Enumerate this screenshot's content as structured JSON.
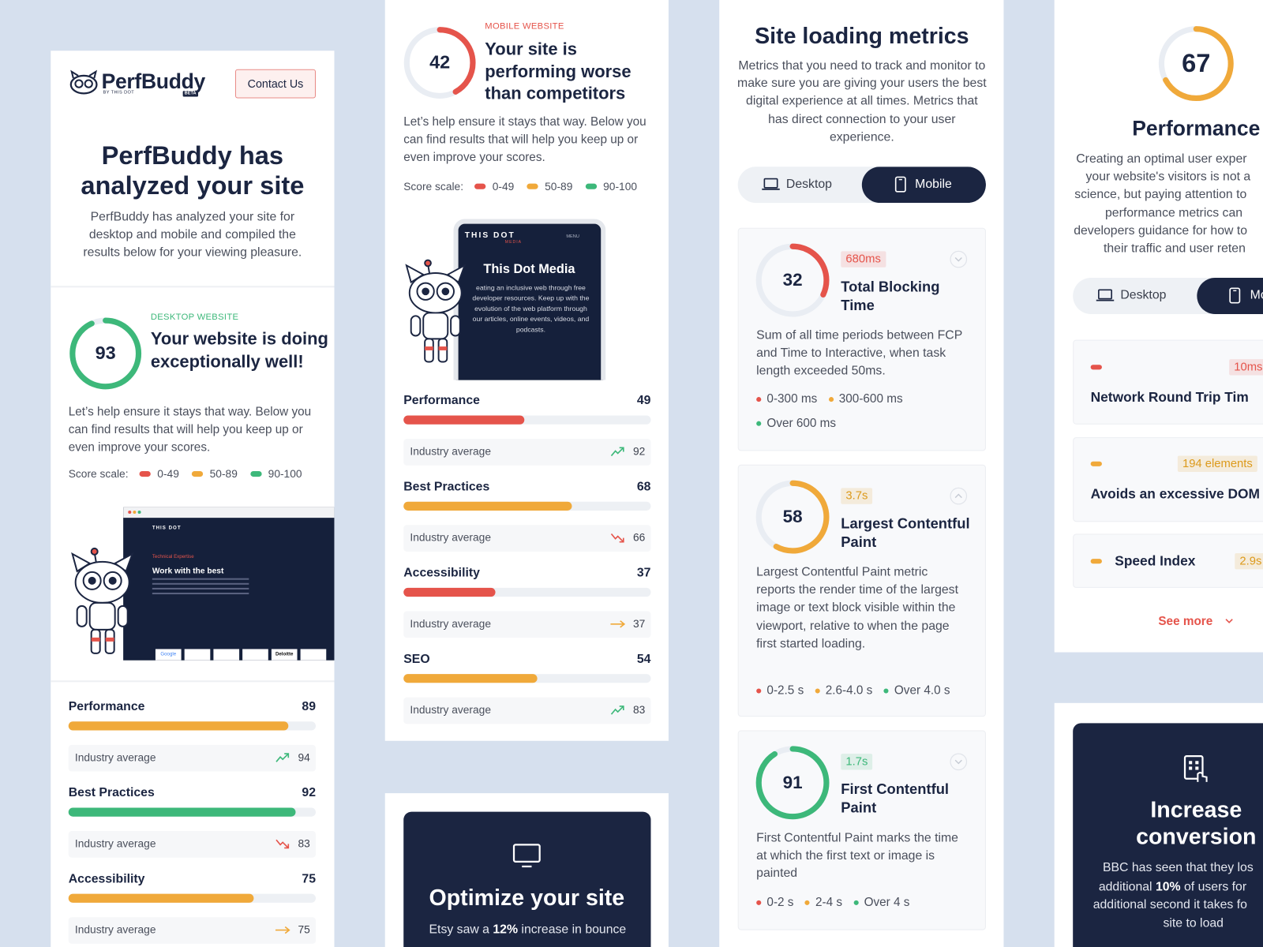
{
  "overview": {
    "logo": "PerfBuddy",
    "logo_by": "BY THIS DOT",
    "logo_badge": "BETA",
    "contact_button": "Contact Us",
    "title": "PerfBuddy has analyzed your site",
    "description": "PerfBuddy has analyzed your site for desktop and mobile and compiled the results below for your viewing pleasure."
  },
  "score_scale": {
    "label": "Score scale:",
    "ranges": [
      {
        "label": "0-49",
        "color": "#e5544b"
      },
      {
        "label": "50-89",
        "color": "#f0a93a"
      },
      {
        "label": "90-100",
        "color": "#3db87a"
      }
    ]
  },
  "industry_label": "Industry average",
  "desktop": {
    "score": 93,
    "color": "#3db87a",
    "label": "DESKTOP WEBSITE",
    "heading": "Your website is doing exceptionally well!",
    "text": "Let’s help ensure it stays that way. Below you can find results that will help you keep up or even improve your scores.",
    "illustration": {
      "brand": "THIS DOT",
      "kicker": "Technical Expertise",
      "headline": "Work with the best",
      "logos": [
        "Google",
        "Deloitte"
      ]
    },
    "metrics": [
      {
        "name": "Performance",
        "score": 89,
        "color": "#f0a93a",
        "industry": 94,
        "trend": "up"
      },
      {
        "name": "Best Practices",
        "score": 92,
        "color": "#3db87a",
        "industry": 83,
        "trend": "down"
      },
      {
        "name": "Accessibility",
        "score": 75,
        "color": "#f0a93a",
        "industry": 75,
        "trend": "flat"
      }
    ]
  },
  "mobile": {
    "score": 42,
    "color": "#e5544b",
    "label": "MOBILE WEBSITE",
    "heading": "Your site is performing worse than competitors",
    "text": "Let’s help ensure it stays that way. Below you can find results that will help you keep up or even improve your scores.",
    "illustration": {
      "brand": "THIS DOT",
      "sub": "MEDIA",
      "menu": "MENU",
      "headline": "This Dot Media",
      "text": "eating an inclusive web through free developer resources. Keep up with the evolution of the web platform through our articles, online events, videos, and podcasts."
    },
    "metrics": [
      {
        "name": "Performance",
        "score": 49,
        "color": "#e5544b",
        "industry": 92,
        "trend": "up"
      },
      {
        "name": "Best Practices",
        "score": 68,
        "color": "#f0a93a",
        "industry": 66,
        "trend": "down"
      },
      {
        "name": "Accessibility",
        "score": 37,
        "color": "#e5544b",
        "industry": 37,
        "trend": "flat"
      },
      {
        "name": "SEO",
        "score": 54,
        "color": "#f0a93a",
        "industry": 83,
        "trend": "up"
      }
    ]
  },
  "optimize": {
    "title": "Optimize your site",
    "text_before": "Etsy saw a ",
    "text_bold": "12%",
    "text_after": " increase in bounce"
  },
  "loading": {
    "title": "Site loading metrics",
    "description": "Metrics that you need to track and monitor to make sure you are giving your users the best digital experience at all times. Metrics that has direct connection to your user experience.",
    "tabs": [
      "Desktop",
      "Mobile"
    ],
    "cards": [
      {
        "score": 32,
        "color": "#e5544b",
        "badge": "680ms",
        "badge_color": "#e5544b",
        "name": "Total Blocking Time",
        "description": "Sum of all time periods between FCP and Time to Interactive, when task length exceeded 50ms.",
        "legend": [
          "0-300 ms",
          "300-600 ms",
          "Over 600 ms"
        ]
      },
      {
        "score": 58,
        "color": "#f0a93a",
        "badge": "3.7s",
        "badge_color": "#dc9a1c",
        "name": "Largest Contentful Paint",
        "description": "Largest Contentful Paint metric reports the render time of the largest image or text block visible within the viewport, relative to when the page first started loading.",
        "legend": [
          "0-2.5 s",
          "2.6-4.0 s",
          "Over 4.0 s"
        ]
      },
      {
        "score": 91,
        "color": "#3db87a",
        "badge": "1.7s",
        "badge_color": "#3db87a",
        "name": "First Contentful Paint",
        "description": "First Contentful Paint marks the time at which the first text or image is painted",
        "legend": [
          "0-2 s",
          "2-4 s",
          "Over 4 s"
        ]
      }
    ]
  },
  "performance": {
    "score": 67,
    "color": "#f0a93a",
    "title": "Performance",
    "description_lines": [
      "Creating an optimal user exper",
      "your website's visitors is not a",
      "science, but paying attention to",
      "performance metrics can",
      "developers guidance for how to",
      "their traffic and user reten"
    ],
    "items": [
      {
        "badge": "10ms",
        "name": "Network Round Trip Tim",
        "color": "#e5544b"
      },
      {
        "badge": "194 elements",
        "name": "Avoids an excessive DOM",
        "color": "#f0a93a"
      },
      {
        "badge": "2.9s",
        "name": "Speed Index",
        "color": "#f0a93a"
      }
    ],
    "see_more": "See more"
  },
  "conversion": {
    "title": "Increase conversion",
    "line1": "BBC has seen that they los",
    "line2_before": "additional ",
    "line2_bold": "10%",
    "line2_after": " of users for",
    "line3": "additional second it takes fo",
    "line4": "site to load"
  }
}
